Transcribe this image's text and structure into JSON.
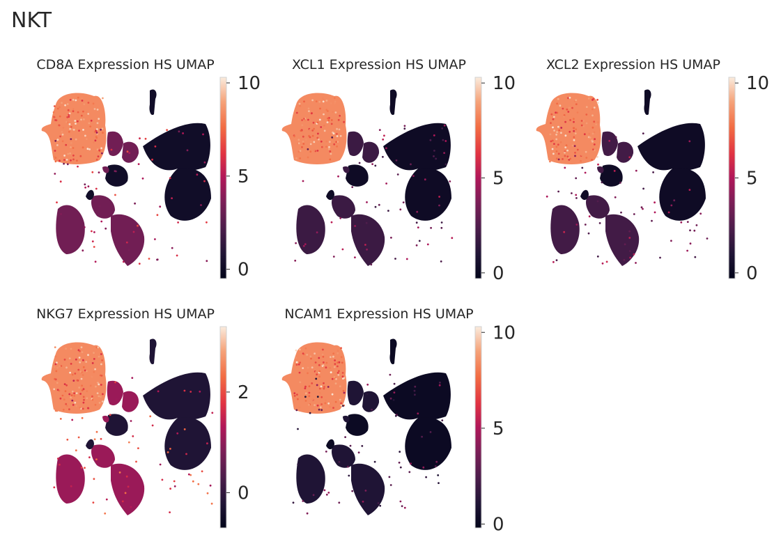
{
  "figure": {
    "suptitle": "NKT"
  },
  "chart_data": [
    {
      "type": "scatter",
      "title": "CD8A Expression HS UMAP",
      "colorbar": {
        "ticks": [
          0,
          5,
          10
        ],
        "range": [
          -0.5,
          10.3
        ]
      },
      "high_region": "cluster-A",
      "secondary_level": 0.35,
      "background_level": 0.06
    },
    {
      "type": "scatter",
      "title": "XCL1 Expression HS UMAP",
      "colorbar": {
        "ticks": [
          0,
          5,
          10
        ],
        "range": [
          -0.3,
          10.3
        ]
      },
      "high_region": "cluster-A",
      "secondary_level": 0.2,
      "background_level": 0.05
    },
    {
      "type": "scatter",
      "title": "XCL2 Expression HS UMAP",
      "colorbar": {
        "ticks": [
          0,
          5,
          10
        ],
        "range": [
          -0.3,
          10.3
        ]
      },
      "high_region": "cluster-A",
      "secondary_level": 0.22,
      "background_level": 0.05
    },
    {
      "type": "scatter",
      "title": "NKG7 Expression HS UMAP",
      "colorbar": {
        "ticks": [
          0,
          2
        ],
        "range": [
          -0.7,
          3.3
        ],
        "zero_label": "0"
      },
      "high_region": "cluster-A",
      "secondary_level": 0.45,
      "background_level": 0.12
    },
    {
      "type": "scatter",
      "title": "NCAM1 Expression HS UMAP",
      "colorbar": {
        "ticks": [
          0,
          5,
          10
        ],
        "range": [
          -0.2,
          10.3
        ]
      },
      "high_region": "cluster-A",
      "secondary_level": 0.12,
      "background_level": 0.04
    }
  ]
}
